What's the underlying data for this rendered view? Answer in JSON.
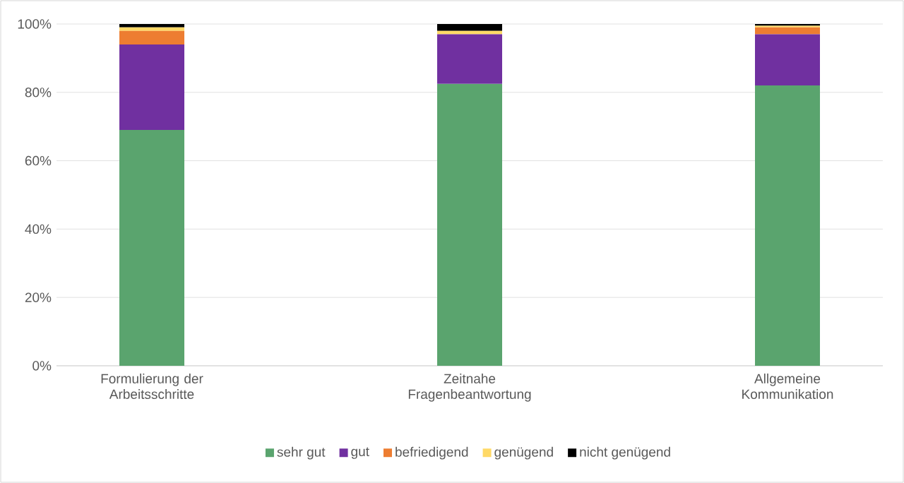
{
  "chart_data": {
    "type": "bar",
    "stacked": true,
    "categories": [
      "Formulierung der Arbeitsschritte",
      "Zeitnahe Fragenbeantwortung",
      "Allgemeine Kommunikation"
    ],
    "series": [
      {
        "name": "sehr gut",
        "color": "#5aa46e",
        "values": [
          69,
          82.5,
          82
        ]
      },
      {
        "name": "gut",
        "color": "#7030a0",
        "values": [
          25,
          14.5,
          15
        ]
      },
      {
        "name": "befriedigend",
        "color": "#ed7d31",
        "values": [
          4,
          0,
          2
        ]
      },
      {
        "name": "genügend",
        "color": "#ffd966",
        "values": [
          1,
          1,
          0.5
        ]
      },
      {
        "name": "nicht genügend",
        "color": "#000000",
        "values": [
          1,
          2,
          0.5
        ]
      }
    ],
    "ylim": [
      0,
      100
    ],
    "yticks": [
      {
        "value": 0,
        "label": "0%"
      },
      {
        "value": 20,
        "label": "20%"
      },
      {
        "value": 40,
        "label": "40%"
      },
      {
        "value": 60,
        "label": "60%"
      },
      {
        "value": 80,
        "label": "80%"
      },
      {
        "value": 100,
        "label": "100%"
      }
    ],
    "grid": "y",
    "legend": "bottom"
  }
}
